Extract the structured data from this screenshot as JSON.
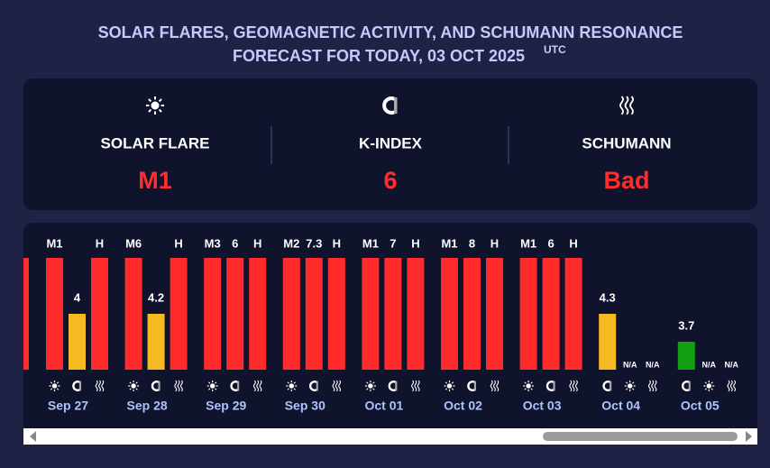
{
  "header": {
    "title_line1": "SOLAR FLARES, GEOMAGNETIC ACTIVITY, AND SCHUMANN RESONANCE",
    "title_line2": "FORECAST FOR TODAY, 03 OCT 2025",
    "timezone": "UTC"
  },
  "summary": [
    {
      "label": "SOLAR FLARE",
      "value": "M1"
    },
    {
      "label": "K-INDEX",
      "value": 6
    },
    {
      "label": "SCHUMANN",
      "value": "Bad"
    }
  ],
  "days": [
    {
      "date": "Sep 27",
      "solar_flare": "M1",
      "k_index": 4,
      "schumann": "H"
    },
    {
      "date": "Sep 28",
      "solar_flare": "M6",
      "k_index": 4.2,
      "schumann": "H"
    },
    {
      "date": "Sep 29",
      "solar_flare": "M3",
      "k_index": 6,
      "schumann": "H"
    },
    {
      "date": "Sep 30",
      "solar_flare": "M2",
      "k_index": 7.3,
      "schumann": "H"
    },
    {
      "date": "Oct 01",
      "solar_flare": "M1",
      "k_index": 7,
      "schumann": "H"
    },
    {
      "date": "Oct 02",
      "solar_flare": "M1",
      "k_index": 8,
      "schumann": "H"
    },
    {
      "date": "Oct 03",
      "solar_flare": "M1",
      "k_index": 6,
      "schumann": "H"
    },
    {
      "date": "Oct 04",
      "solar_flare": "N/A",
      "k_index": 4.3,
      "schumann": "N/A"
    },
    {
      "date": "Oct 05",
      "solar_flare": "N/A",
      "k_index": 3.7,
      "schumann": "N/A"
    }
  ]
}
